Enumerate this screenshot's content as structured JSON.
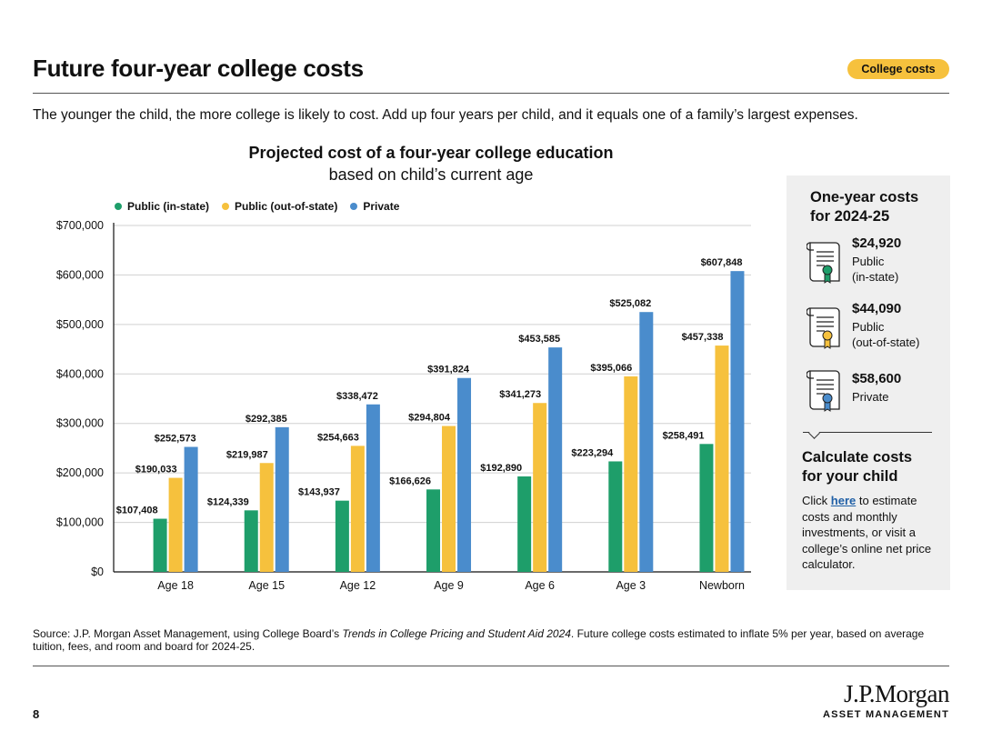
{
  "header": {
    "title": "Future four-year college costs",
    "badge": "College costs",
    "subtitle": "The younger the child, the more college is likely to cost. Add up four years per child, and it equals one of a family’s largest expenses."
  },
  "chart_data": {
    "type": "bar",
    "title": "Projected cost of a four-year college education",
    "subtitle": "based on child’s current age",
    "categories": [
      "Age 18",
      "Age 15",
      "Age 12",
      "Age 9",
      "Age 6",
      "Age 3",
      "Newborn"
    ],
    "series": [
      {
        "name": "Public (in-state)",
        "color": "#1e9e6a",
        "values": [
          107408,
          124339,
          143937,
          166626,
          192890,
          223294,
          258491
        ],
        "labels": [
          "$107,408",
          "$124,339",
          "$143,937",
          "$166,626",
          "$192,890",
          "$223,294",
          "$258,491"
        ]
      },
      {
        "name": "Public (out-of-state)",
        "color": "#f6c13d",
        "values": [
          190033,
          219987,
          254663,
          294804,
          341273,
          395066,
          457338
        ],
        "labels": [
          "$190,033",
          "$219,987",
          "$254,663",
          "$294,804",
          "$341,273",
          "$395,066",
          "$457,338"
        ]
      },
      {
        "name": "Private",
        "color": "#4a8ccc",
        "values": [
          252573,
          292385,
          338472,
          391824,
          453585,
          525082,
          607848
        ],
        "labels": [
          "$252,573",
          "$292,385",
          "$338,472",
          "$391,824",
          "$453,585",
          "$525,082",
          "$607,848"
        ]
      }
    ],
    "ylim": [
      0,
      700000
    ],
    "yticks": [
      0,
      100000,
      200000,
      300000,
      400000,
      500000,
      600000,
      700000
    ],
    "ytick_labels": [
      "$0",
      "$100,000",
      "$200,000",
      "$300,000",
      "$400,000",
      "$500,000",
      "$600,000",
      "$700,000"
    ],
    "grid": true,
    "legend": "top-left"
  },
  "sidebar": {
    "heading_line1": "One-year costs",
    "heading_line2": "for 2024-25",
    "costs": [
      {
        "amount": "$24,920",
        "label_line1": "Public",
        "label_line2": "(in-state)",
        "icon": "certificate-green-seal-icon",
        "color": "#1e9e6a"
      },
      {
        "amount": "$44,090",
        "label_line1": "Public",
        "label_line2": "(out-of-state)",
        "icon": "certificate-yellow-seal-icon",
        "color": "#f6c13d"
      },
      {
        "amount": "$58,600",
        "label_line1": "Private",
        "label_line2": "",
        "icon": "certificate-blue-seal-icon",
        "color": "#4a8ccc"
      }
    ],
    "calc_heading_line1": "Calculate costs",
    "calc_heading_line2": "for your child",
    "calc_prefix": "Click ",
    "calc_link": "here",
    "calc_suffix": " to estimate costs and monthly investments, or visit a college’s online net price calculator."
  },
  "footer": {
    "source_prefix": "Source: J.P. Morgan Asset Management, using College Board’s ",
    "source_italic": "Trends in College Pricing and Student Aid 2024",
    "source_suffix": ". Future college costs estimated to inflate 5% per year, based on average tuition, fees, and room and board for 2024-25.",
    "page_number": "8",
    "logo_main": "J.P.Morgan",
    "logo_sub": "ASSET MANAGEMENT"
  }
}
